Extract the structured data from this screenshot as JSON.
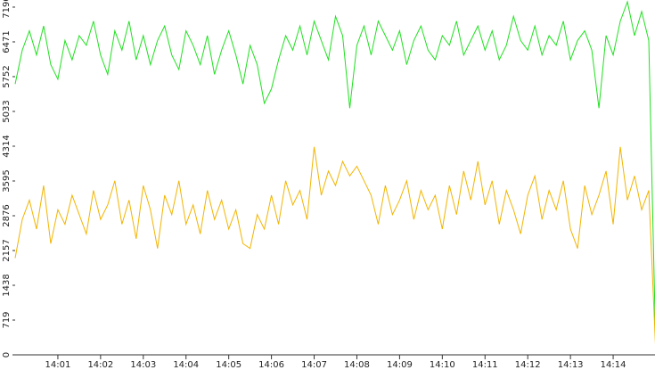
{
  "chart_data": {
    "type": "line",
    "x": [
      0,
      10,
      20,
      30,
      40,
      50,
      60,
      70,
      80,
      90,
      100,
      110,
      120,
      130,
      140,
      150,
      160,
      170,
      180,
      190,
      200,
      210,
      220,
      230,
      240,
      250,
      260,
      270,
      280,
      290,
      300,
      310,
      320,
      330,
      340,
      350,
      360,
      370,
      380,
      390,
      400,
      410,
      420,
      430,
      440,
      450,
      460,
      470,
      480,
      490,
      500,
      510,
      520,
      530,
      540,
      550,
      560,
      570,
      580,
      590,
      600,
      610,
      620,
      630,
      640,
      650,
      660,
      670,
      680,
      690,
      700,
      710,
      720,
      730,
      740,
      750,
      760,
      770,
      780,
      790,
      800,
      810,
      820,
      830,
      840,
      850,
      860,
      870,
      880,
      890,
      900
    ],
    "series": [
      {
        "color": "#1fe01f",
        "values": [
          5600,
          6300,
          6700,
          6200,
          6800,
          6000,
          5700,
          6500,
          6100,
          6600,
          6400,
          6900,
          6200,
          5800,
          6700,
          6300,
          6900,
          6100,
          6600,
          6000,
          6500,
          6800,
          6200,
          5900,
          6700,
          6400,
          6000,
          6600,
          5800,
          6300,
          6700,
          6200,
          5600,
          6400,
          6000,
          5200,
          5500,
          6100,
          6600,
          6300,
          6800,
          6200,
          6900,
          6500,
          6100,
          7000,
          6600,
          5100,
          6400,
          6800,
          6200,
          6900,
          6600,
          6300,
          6700,
          6000,
          6500,
          6800,
          6300,
          6100,
          6600,
          6400,
          6900,
          6200,
          6500,
          6800,
          6300,
          6700,
          6100,
          6400,
          7000,
          6500,
          6300,
          6800,
          6200,
          6600,
          6400,
          6900,
          6100,
          6500,
          6700,
          6300,
          5100,
          6600,
          6200,
          6900,
          7300,
          6600,
          7100,
          6500,
          0
        ]
      },
      {
        "color": "#f2b400",
        "values": [
          2000,
          2800,
          3200,
          2600,
          3500,
          2300,
          3000,
          2700,
          3300,
          2900,
          2500,
          3400,
          2800,
          3100,
          3600,
          2700,
          3200,
          2400,
          3500,
          3000,
          2200,
          3300,
          2900,
          3600,
          2700,
          3100,
          2500,
          3400,
          2800,
          3200,
          2600,
          3000,
          2300,
          2200,
          2900,
          2600,
          3300,
          2700,
          3600,
          3100,
          3400,
          2800,
          4300,
          3300,
          3800,
          3500,
          4000,
          3700,
          3900,
          3600,
          3300,
          2700,
          3500,
          2900,
          3200,
          3600,
          2800,
          3400,
          3000,
          3300,
          2600,
          3500,
          2900,
          3800,
          3200,
          4000,
          3100,
          3600,
          2700,
          3400,
          3000,
          2500,
          3300,
          3700,
          2800,
          3400,
          3000,
          3600,
          2600,
          2200,
          3500,
          2900,
          3300,
          3800,
          2700,
          4300,
          3200,
          3700,
          3000,
          3400,
          0
        ]
      }
    ],
    "xlim": [
      0,
      900
    ],
    "xticks": [
      {
        "value": 60,
        "label": "14:01"
      },
      {
        "value": 120,
        "label": "14:02"
      },
      {
        "value": 180,
        "label": "14:03"
      },
      {
        "value": 240,
        "label": "14:04"
      },
      {
        "value": 300,
        "label": "14:05"
      },
      {
        "value": 360,
        "label": "14:06"
      },
      {
        "value": 420,
        "label": "14:07"
      },
      {
        "value": 480,
        "label": "14:08"
      },
      {
        "value": 540,
        "label": "14:09"
      },
      {
        "value": 600,
        "label": "14:10"
      },
      {
        "value": 660,
        "label": "14:11"
      },
      {
        "value": 720,
        "label": "14:12"
      },
      {
        "value": 780,
        "label": "14:13"
      },
      {
        "value": 840,
        "label": "14:14"
      }
    ],
    "ylim": [
      0,
      7337
    ],
    "yticks": [
      0,
      719,
      1438,
      2157,
      2876,
      3595,
      4314,
      5033,
      5752,
      6471,
      7190
    ]
  }
}
